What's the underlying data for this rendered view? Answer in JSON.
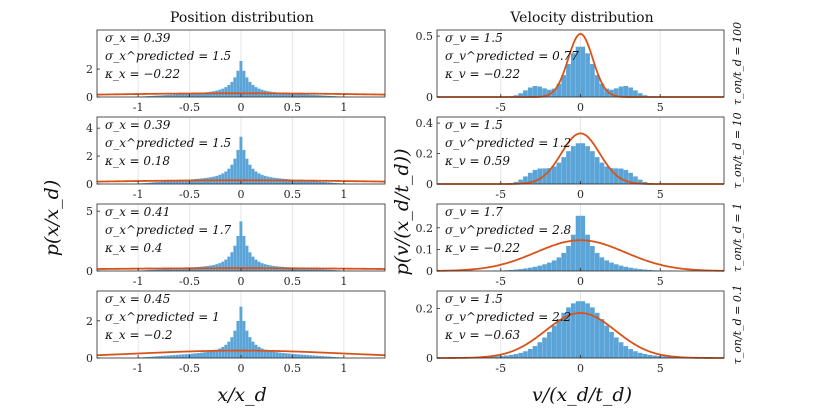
{
  "titles": {
    "position": "Position distribution",
    "velocity": "Velocity distribution"
  },
  "axes": {
    "position_xlabel": "x/x_d",
    "position_ylabel": "p(x/x_d)",
    "velocity_xlabel": "v/(x_d/t_d)",
    "velocity_ylabel": "p(v/(x_d/t_d))"
  },
  "colors": {
    "hist": "#5aa4d8",
    "fit": "#d95319",
    "axis": "#262626"
  },
  "chart_data": [
    {
      "type": "bar",
      "column": "position",
      "row": 0,
      "row_label": "τ_on/t_d = 100",
      "xlim": [
        -1.4,
        1.4
      ],
      "ylim": [
        0,
        4.8
      ],
      "xticks": [
        -1,
        -0.5,
        0,
        0.5,
        1
      ],
      "xtick_labels": [
        "-1",
        "-0.5",
        "0",
        "0.5",
        "1"
      ],
      "yticks": [
        0,
        2
      ],
      "ytick_labels": [
        "0",
        "2"
      ],
      "stats": [
        "σ_x = 0.39",
        "σ_x^predicted = 1.5",
        "κ_x = −0.22"
      ],
      "fit_sigma": 1.5,
      "fit_mean": 0
    },
    {
      "type": "bar",
      "column": "position",
      "row": 1,
      "row_label": "τ_on/t_d = 10",
      "xlim": [
        -1.4,
        1.4
      ],
      "ylim": [
        0,
        4.8
      ],
      "xticks": [
        -1,
        -0.5,
        0,
        0.5,
        1
      ],
      "xtick_labels": [
        "-1",
        "-0.5",
        "0",
        "0.5",
        "1"
      ],
      "yticks": [
        0,
        2,
        4
      ],
      "ytick_labels": [
        "0",
        "2",
        "4"
      ],
      "stats": [
        "σ_x = 0.39",
        "σ_x^predicted = 1.5",
        "κ_x = 0.18"
      ],
      "fit_sigma": 1.5,
      "fit_mean": 0
    },
    {
      "type": "bar",
      "column": "position",
      "row": 2,
      "row_label": "τ_on/t_d = 1",
      "xlim": [
        -1.4,
        1.4
      ],
      "ylim": [
        0,
        5.6
      ],
      "xticks": [
        -1,
        -0.5,
        0,
        0.5,
        1
      ],
      "xtick_labels": [
        "-1",
        "-0.5",
        "0",
        "0.5",
        "1"
      ],
      "yticks": [
        0,
        5
      ],
      "ytick_labels": [
        "0",
        "5"
      ],
      "stats": [
        "σ_x = 0.41",
        "σ_x^predicted = 1.7",
        "κ_x = 0.4"
      ],
      "fit_sigma": 1.7,
      "fit_mean": 0
    },
    {
      "type": "bar",
      "column": "position",
      "row": 3,
      "row_label": "τ_on/t_d = 0.1",
      "xlim": [
        -1.4,
        1.4
      ],
      "ylim": [
        0,
        3.6
      ],
      "xticks": [
        -1,
        -0.5,
        0,
        0.5,
        1
      ],
      "xtick_labels": [
        "-1",
        "-0.5",
        "0",
        "0.5",
        "1"
      ],
      "yticks": [
        0,
        2
      ],
      "ytick_labels": [
        "0",
        "2"
      ],
      "stats": [
        "σ_x = 0.45",
        "σ_x^predicted = 1",
        "κ_x = −0.2"
      ],
      "fit_sigma": 1.0,
      "fit_mean": 0
    },
    {
      "type": "bar",
      "column": "velocity",
      "row": 0,
      "row_label": "τ_on/t_d = 100",
      "xlim": [
        -9,
        9
      ],
      "ylim": [
        0,
        0.55
      ],
      "xticks": [
        -5,
        0,
        5
      ],
      "xtick_labels": [
        "-5",
        "0",
        "5"
      ],
      "yticks": [
        0,
        0.5
      ],
      "ytick_labels": [
        "0",
        "0.5"
      ],
      "stats": [
        "σ_v = 1.5",
        "σ_v^predicted = 0.77",
        "κ_v = −0.22"
      ],
      "fit_sigma": 0.77,
      "fit_mean": 0
    },
    {
      "type": "bar",
      "column": "velocity",
      "row": 1,
      "row_label": "τ_on/t_d = 10",
      "xlim": [
        -9,
        9
      ],
      "ylim": [
        0,
        0.44
      ],
      "xticks": [
        -5,
        0,
        5
      ],
      "xtick_labels": [
        "-5",
        "0",
        "5"
      ],
      "yticks": [
        0,
        0.2,
        0.4
      ],
      "ytick_labels": [
        "0",
        "0.2",
        "0.4"
      ],
      "stats": [
        "σ_v = 1.5",
        "σ_v^predicted = 1.2",
        "κ_v = 0.59"
      ],
      "fit_sigma": 1.2,
      "fit_mean": 0
    },
    {
      "type": "bar",
      "column": "velocity",
      "row": 2,
      "row_label": "τ_on/t_d = 1",
      "xlim": [
        -9,
        9
      ],
      "ylim": [
        0,
        0.31
      ],
      "xticks": [
        -5,
        0,
        5
      ],
      "xtick_labels": [
        "-5",
        "0",
        "5"
      ],
      "yticks": [
        0,
        0.1,
        0.2
      ],
      "ytick_labels": [
        "0",
        "0.1",
        "0.2"
      ],
      "stats": [
        "σ_v = 1.7",
        "σ_v^predicted = 2.8",
        "κ_v = −0.22"
      ],
      "fit_sigma": 2.8,
      "fit_mean": 0
    },
    {
      "type": "bar",
      "column": "velocity",
      "row": 3,
      "row_label": "τ_on/t_d = 0.1",
      "xlim": [
        -9,
        9
      ],
      "ylim": [
        0,
        0.27
      ],
      "xticks": [
        -5,
        0,
        5
      ],
      "xtick_labels": [
        "-5",
        "0",
        "5"
      ],
      "yticks": [
        0,
        0.2
      ],
      "ytick_labels": [
        "0",
        "0.2"
      ],
      "stats": [
        "σ_v = 1.5",
        "σ_v^predicted = 2.2",
        "κ_v = −0.63"
      ],
      "fit_sigma": 2.2,
      "fit_mean": 0
    }
  ]
}
